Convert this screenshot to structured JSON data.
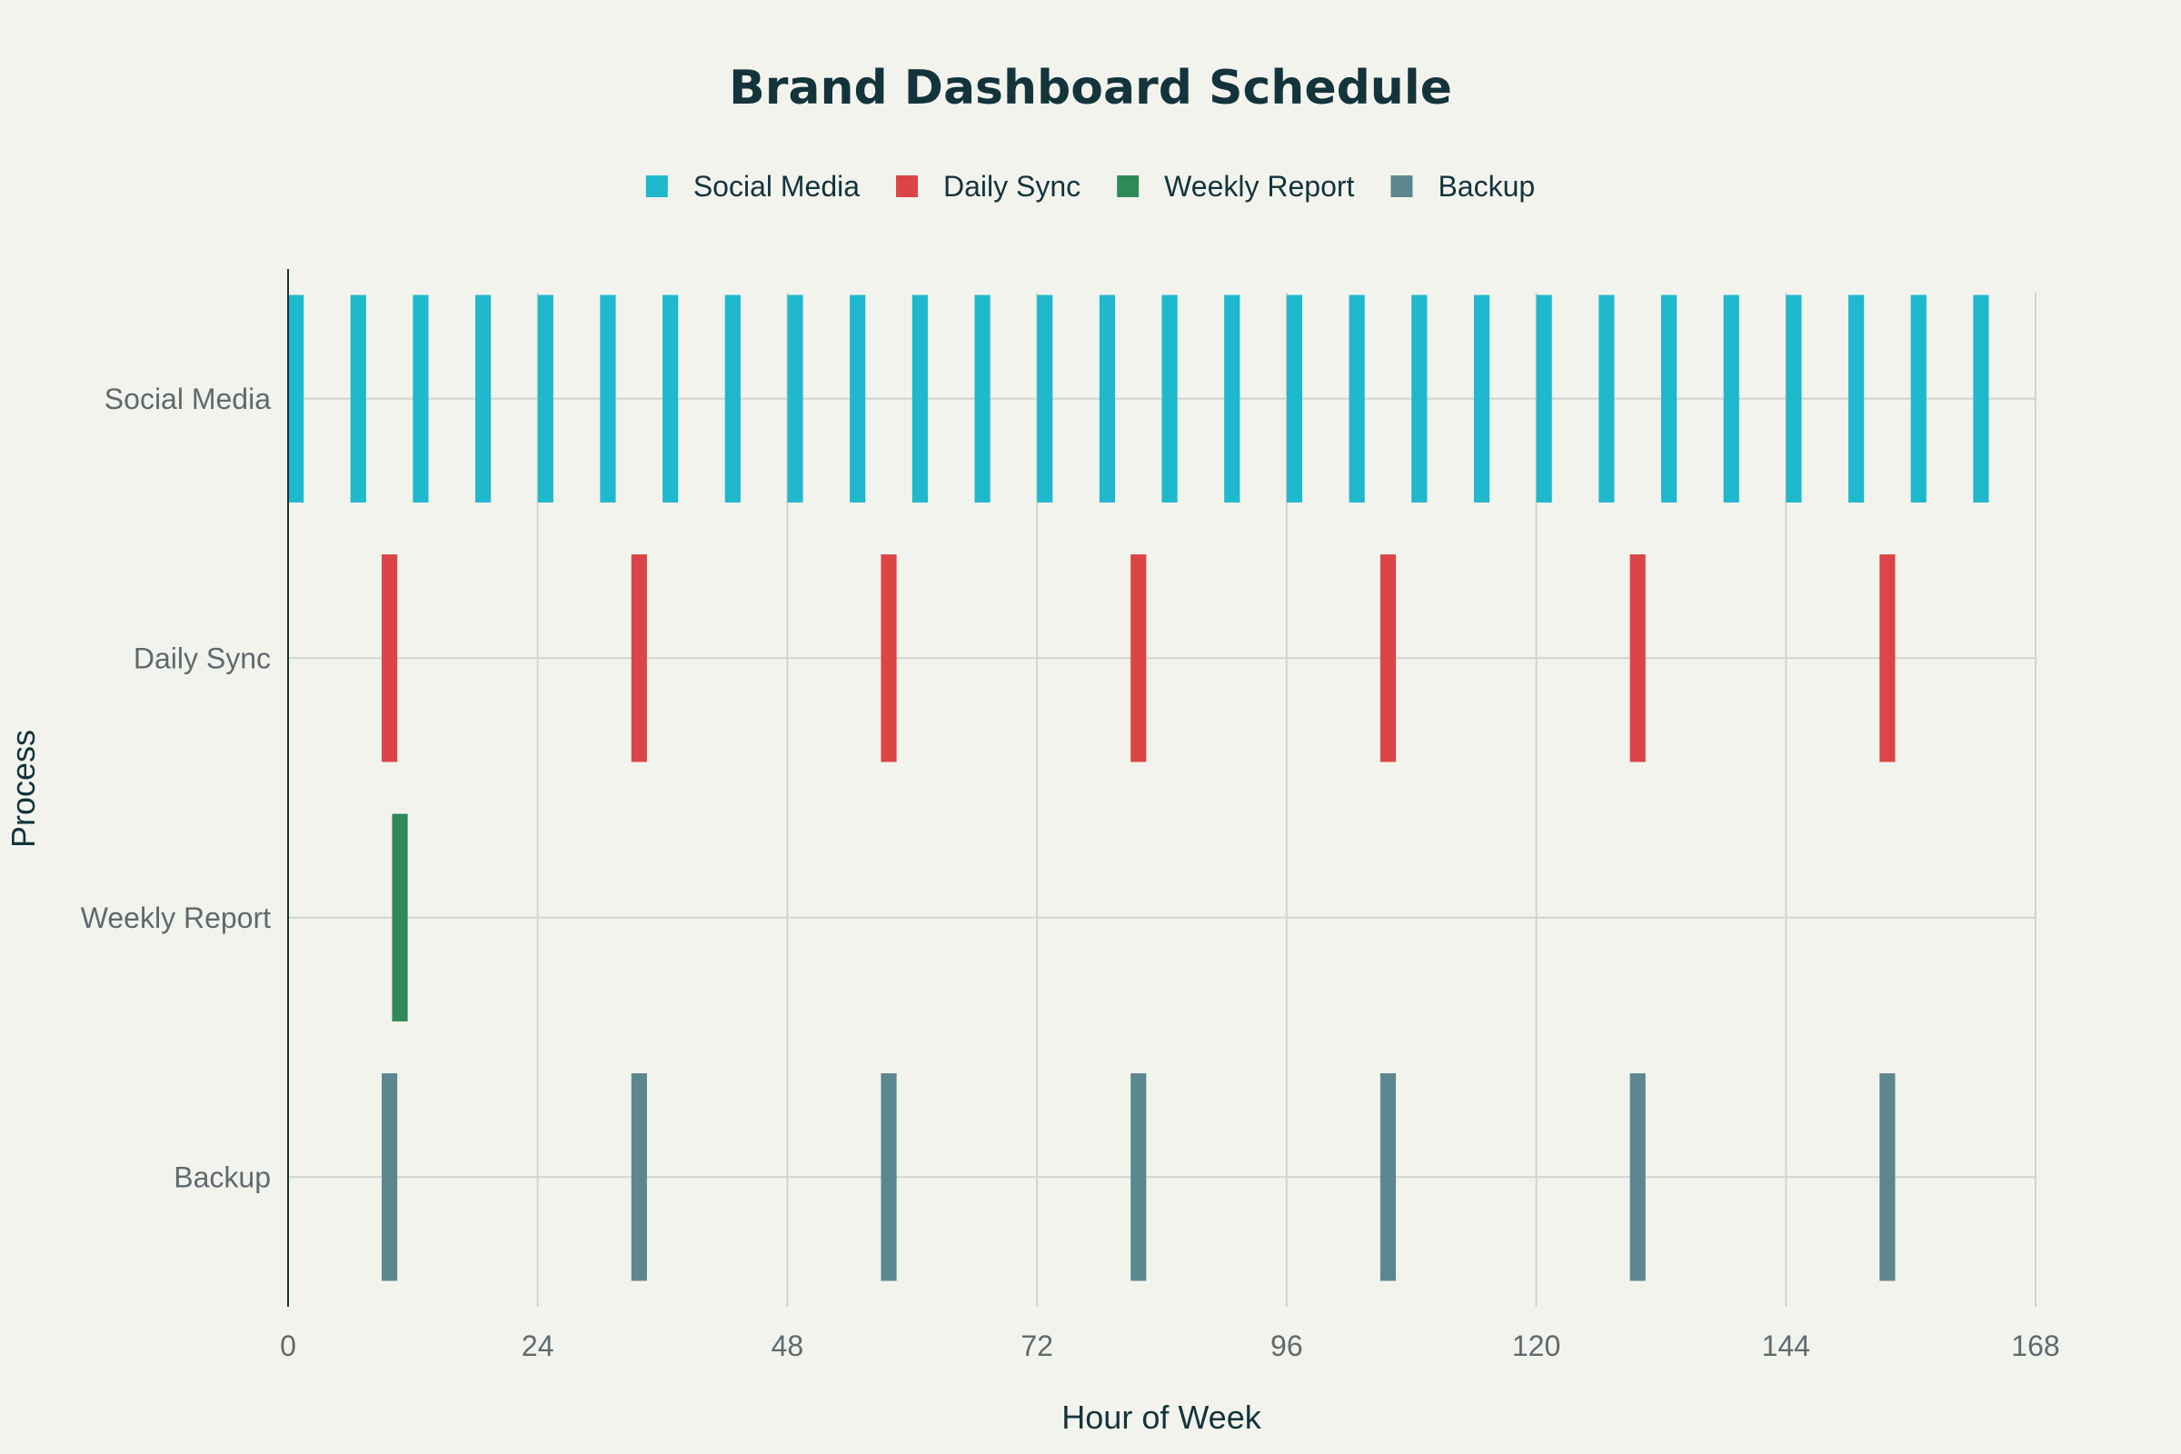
{
  "chart_data": {
    "type": "bar",
    "subtype": "horizontal-timeline",
    "title": "Brand Dashboard Schedule",
    "xlabel": "Hour of Week",
    "ylabel": "Process",
    "xlim": [
      0,
      168
    ],
    "x_ticks": [
      0,
      24,
      48,
      72,
      96,
      120,
      144,
      168
    ],
    "categories": [
      "Social Media",
      "Daily Sync",
      "Weekly Report",
      "Backup"
    ],
    "legend_position": "top-center",
    "grid": true,
    "series": [
      {
        "name": "Social Media",
        "category": "Social Media",
        "color": "#1fb8cd",
        "duration_hours": 1.5,
        "starts": [
          0,
          6,
          12,
          18,
          24,
          30,
          36,
          42,
          48,
          54,
          60,
          66,
          72,
          78,
          84,
          90,
          96,
          102,
          108,
          114,
          120,
          126,
          132,
          138,
          144,
          150,
          156,
          162
        ]
      },
      {
        "name": "Daily Sync",
        "category": "Daily Sync",
        "color": "#db4545",
        "duration_hours": 1.5,
        "starts": [
          9,
          33,
          57,
          81,
          105,
          129,
          153
        ]
      },
      {
        "name": "Weekly Report",
        "category": "Weekly Report",
        "color": "#2e8b57",
        "duration_hours": 1.5,
        "starts": [
          10
        ]
      },
      {
        "name": "Backup",
        "category": "Backup",
        "color": "#5d878f",
        "duration_hours": 1.5,
        "starts": [
          9,
          33,
          57,
          81,
          105,
          129,
          153
        ]
      }
    ]
  }
}
